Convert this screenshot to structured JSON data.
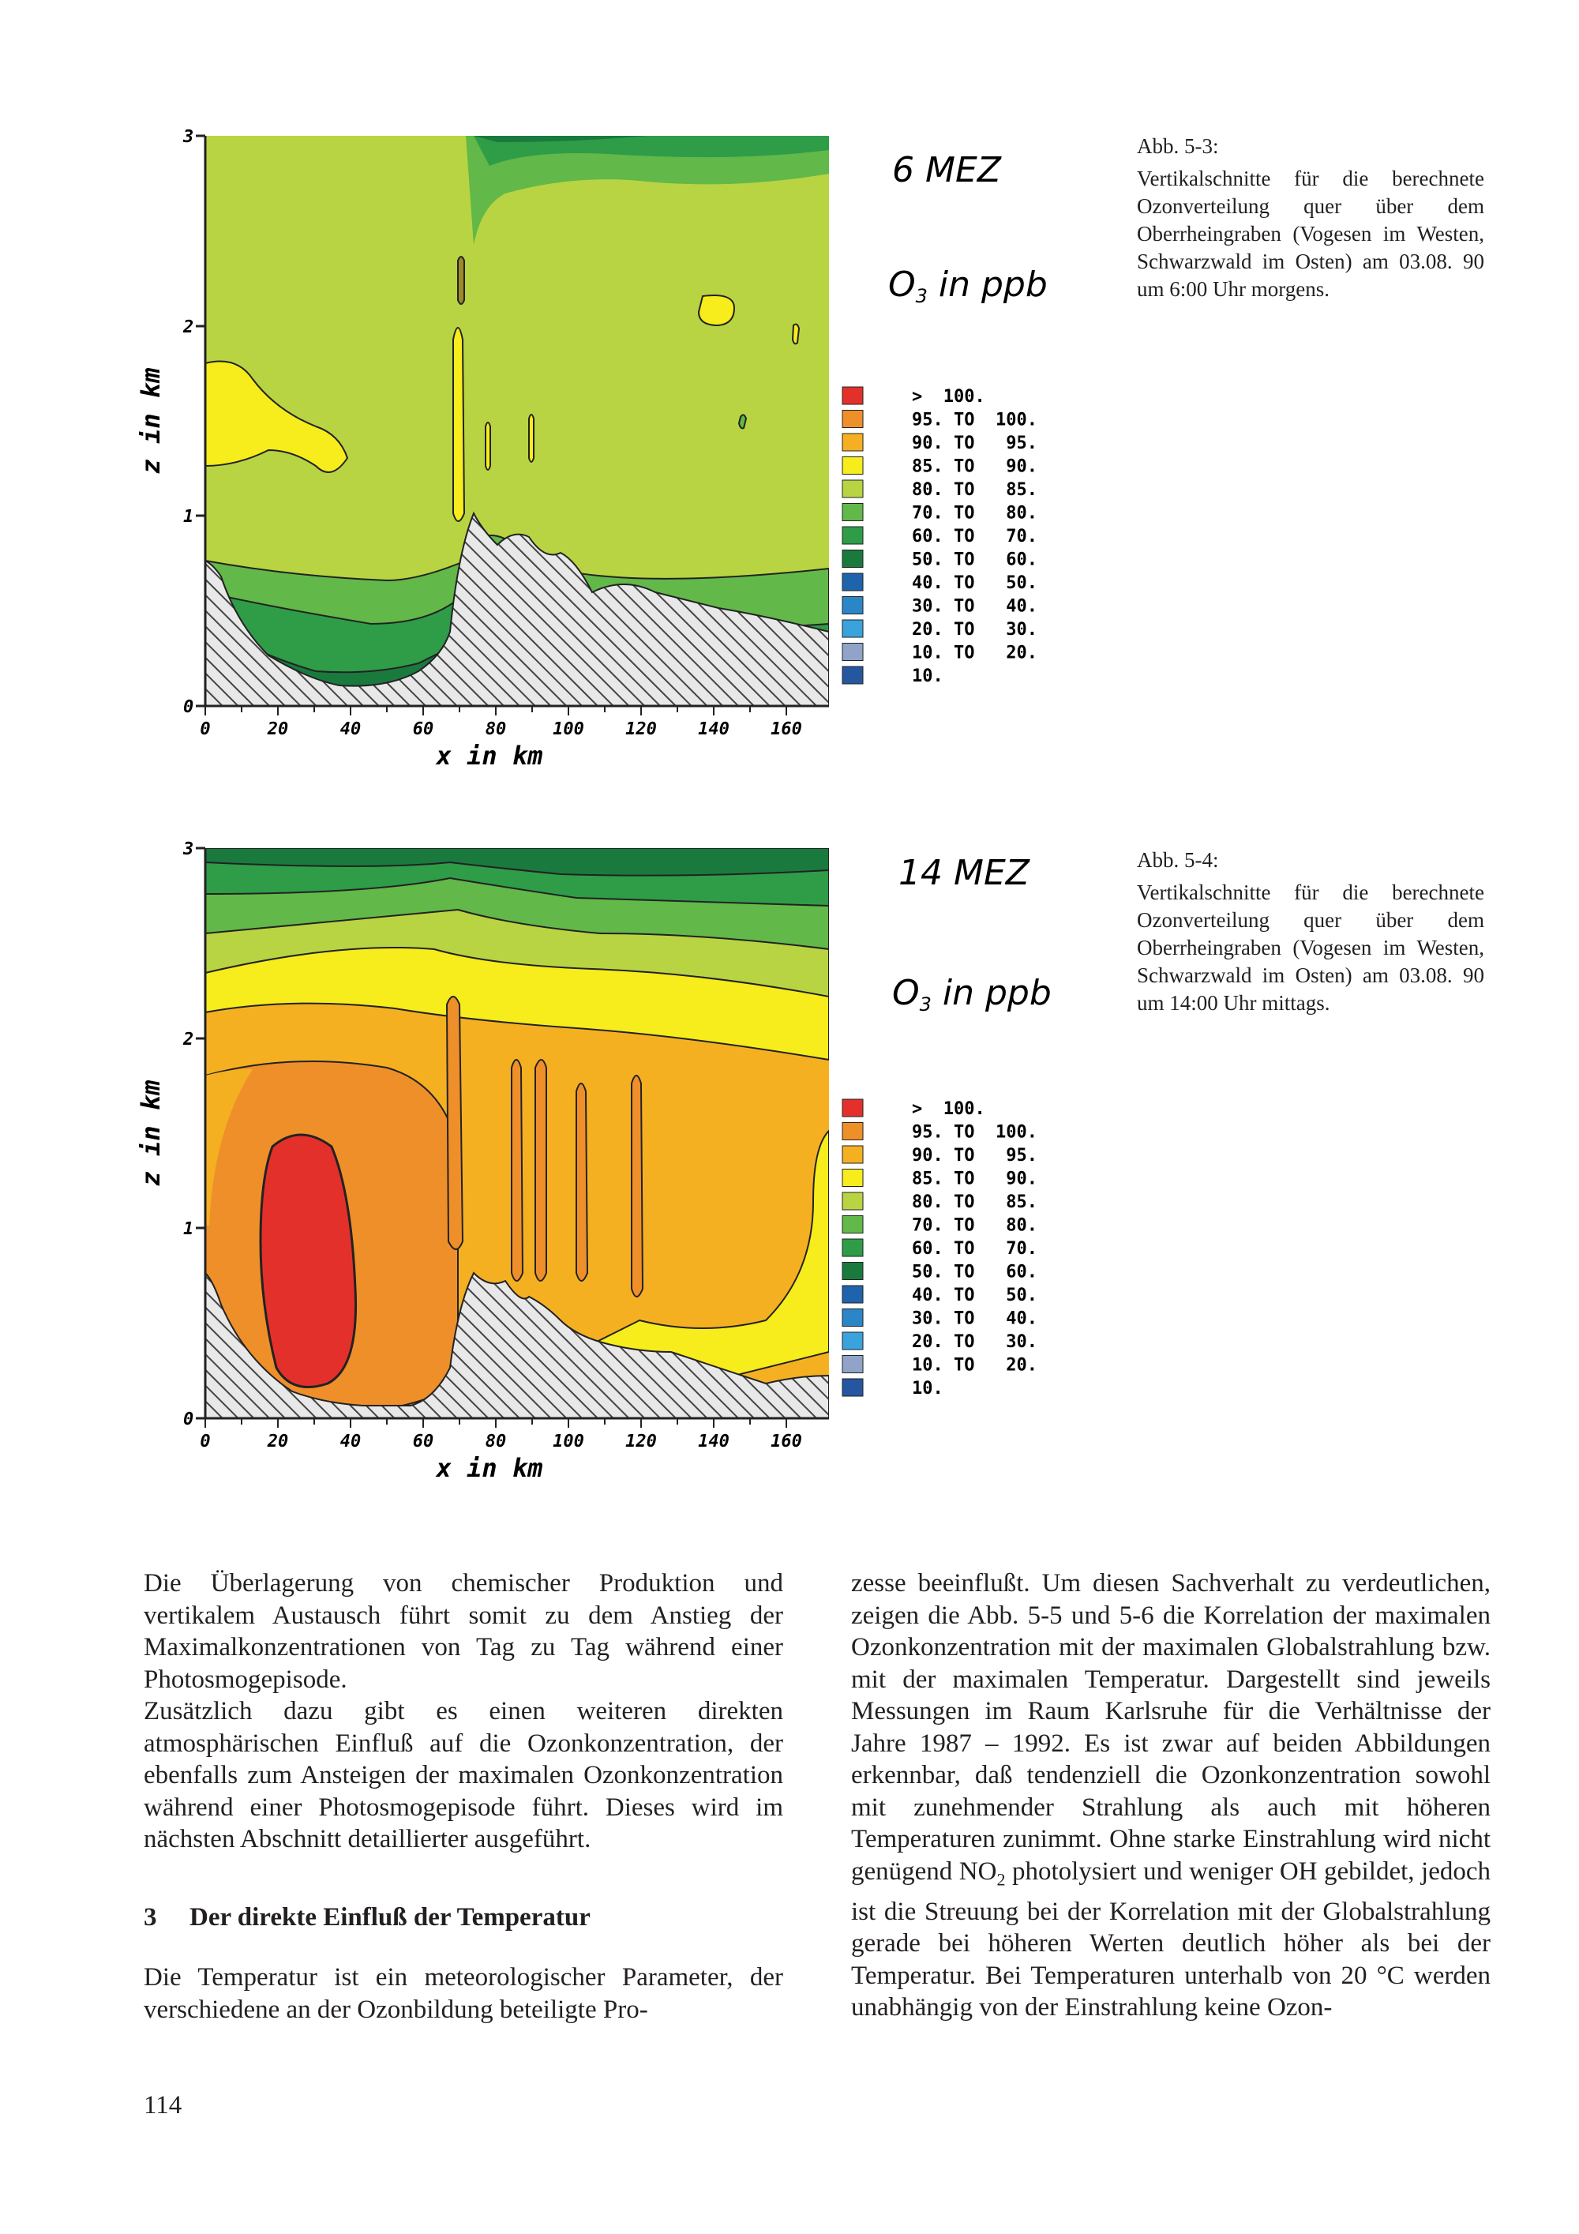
{
  "figures": [
    {
      "time_label": "6 MEZ",
      "quantity_label": "O",
      "quantity_sub": "3",
      "quantity_unit": " in ppb",
      "x_axis_label": "x in km",
      "y_axis_label": "z in km",
      "x_ticks": [
        "0",
        "20",
        "40",
        "60",
        "80",
        "100",
        "120",
        "140",
        "160"
      ],
      "y_ticks": [
        "0",
        "1",
        "2",
        "3"
      ],
      "caption_title": "Abb. 5-3:",
      "caption_text": "Vertikalschnitte für die berechnete Ozonverteilung quer über dem Oberrheingraben (Vogesen im Westen, Schwarzwald im Osten) am 03.08. 90 um 6:00 Uhr morgens."
    },
    {
      "time_label": "14 MEZ",
      "quantity_label": "O",
      "quantity_sub": "3",
      "quantity_unit": " in ppb",
      "x_axis_label": "x in km",
      "y_axis_label": "z in km",
      "x_ticks": [
        "0",
        "20",
        "40",
        "60",
        "80",
        "100",
        "120",
        "140",
        "160"
      ],
      "y_ticks": [
        "0",
        "1",
        "2",
        "3"
      ],
      "caption_title": "Abb. 5-4:",
      "caption_text": "Vertikalschnitte für die berechnete Ozonverteilung quer über dem Oberrheingraben (Vogesen im Westen, Schwarzwald im Osten) am 03.08. 90 um 14:00 Uhr mittags."
    }
  ],
  "legend": [
    {
      "label": ">  100.",
      "color": "#e4302b"
    },
    {
      "label": "95. TO  100.",
      "color": "#ef8f2a"
    },
    {
      "label": "90. TO   95.",
      "color": "#f5b022"
    },
    {
      "label": "85. TO   90.",
      "color": "#f7ec1c"
    },
    {
      "label": "80. TO   85.",
      "color": "#b8d443"
    },
    {
      "label": "70. TO   80.",
      "color": "#62b848"
    },
    {
      "label": "60. TO   70.",
      "color": "#2f9c48"
    },
    {
      "label": "50. TO   60.",
      "color": "#1a7a3e"
    },
    {
      "label": "40. TO   50.",
      "color": "#1f63ad"
    },
    {
      "label": "30. TO   40.",
      "color": "#2b86c8"
    },
    {
      "label": "20. TO   30.",
      "color": "#3aa2dc"
    },
    {
      "label": "10. TO   20.",
      "color": "#8fa4c8"
    },
    {
      "label": "10.",
      "color": "#2556a0"
    }
  ],
  "body": {
    "left_p1": "Die Überlagerung von chemischer Produktion und vertikalem Austausch führt somit zu dem Anstieg der Maximalkonzentrationen von Tag zu Tag während einer Photosmogepisode.",
    "left_p2": "Zusätzlich dazu gibt es einen weiteren direkten atmosphärischen Einfluß auf die Ozonkonzentration, der ebenfalls zum Ansteigen der maximalen Ozonkonzentration während einer Photosmogepisode führt. Dieses wird im nächsten Abschnitt detaillierter ausgeführt.",
    "section_number": "3",
    "section_title": "Der direkte Einfluß der Temperatur",
    "left_p3": "Die Temperatur ist ein meteorologischer Parameter, der verschiedene an der Ozonbildung beteiligte Pro-",
    "right_p1_a": "zesse beeinflußt. Um diesen Sachverhalt zu verdeutlichen, zeigen die Abb. 5-5 und 5-6 die Korrelation der maximalen Ozonkonzentration mit der maximalen Globalstrahlung bzw. mit der maximalen Temperatur. Dargestellt sind jeweils Messungen im Raum Karlsruhe für die Verhältnisse der Jahre 1987 – 1992. Es ist zwar auf beiden Abbildungen erkennbar, daß tendenziell die Ozonkonzentration sowohl mit zunehmender Strahlung als auch mit höheren Temperaturen zunimmt. Ohne starke Einstrahlung wird nicht genügend NO",
    "right_p1_sub": "2",
    "right_p1_b": " photolysiert und weniger OH gebildet, jedoch ist die Streuung bei der Korrelation mit der Globalstrahlung gerade bei höheren Werten deutlich höher als bei der Temperatur. Bei Temperaturen unterhalb von 20 °C werden unabhängig von der Einstrahlung keine Ozon-",
    "page_number": "114"
  }
}
